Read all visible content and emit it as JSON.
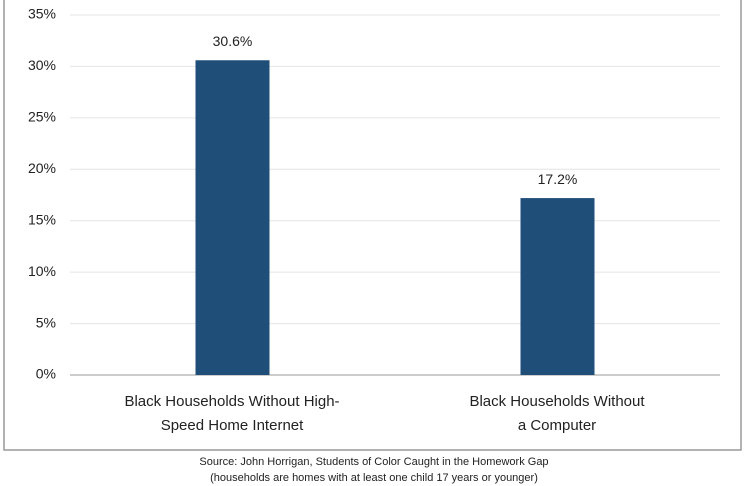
{
  "chart_data": {
    "type": "bar",
    "categories": [
      "Black Households Without High-Speed Home Internet",
      "Black Households Without a Computer"
    ],
    "values": [
      30.6,
      17.2
    ],
    "value_labels": [
      "30.6%",
      "17.2%"
    ],
    "color": "#1f4e79",
    "ylim": [
      0,
      35
    ],
    "yticks": [
      {
        "value": 0,
        "label": "0%"
      },
      {
        "value": 5,
        "label": "5%"
      },
      {
        "value": 10,
        "label": "10%"
      },
      {
        "value": 15,
        "label": "15%"
      },
      {
        "value": 20,
        "label": "20%"
      },
      {
        "value": 25,
        "label": "25%"
      },
      {
        "value": 30,
        "label": "30%"
      },
      {
        "value": 35,
        "label": "35%"
      }
    ],
    "grid": true,
    "source": [
      "Source: John Horrigan, Students of Color Caught in the Homework Gap",
      "(households are homes with at least one child 17 years or younger)"
    ]
  }
}
